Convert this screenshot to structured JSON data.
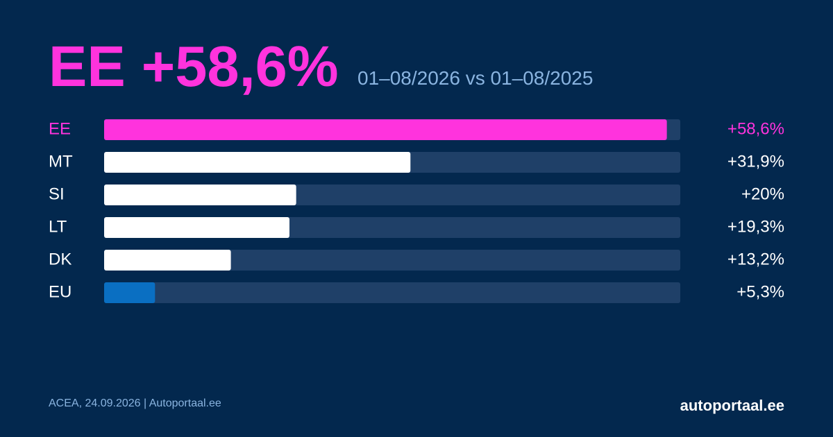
{
  "chart_data": {
    "type": "bar",
    "orientation": "horizontal",
    "title": "EE +58,6%",
    "subtitle": "01–08/2026 vs 01–08/2025",
    "categories": [
      "EE",
      "MT",
      "SI",
      "LT",
      "DK",
      "EU"
    ],
    "values": [
      58.6,
      31.9,
      20,
      19.3,
      13.2,
      5.3
    ],
    "value_labels": [
      "+58,6%",
      "+31,9%",
      "+20%",
      "+19,3%",
      "+13,2%",
      "+5,3%"
    ],
    "colors": [
      "#ff33dd",
      "#ffffff",
      "#ffffff",
      "#ffffff",
      "#ffffff",
      "#0a6fc2"
    ],
    "label_colors": [
      "#ff33dd",
      "#ffffff",
      "#ffffff",
      "#ffffff",
      "#ffffff",
      "#ffffff"
    ],
    "title_color": "#ff33dd",
    "track_color": "#1f4068",
    "xlim": [
      0,
      60
    ],
    "source": "ACEA, 24.09.2026 | Autoportaal.ee",
    "brand": "autoportaal.ee"
  }
}
